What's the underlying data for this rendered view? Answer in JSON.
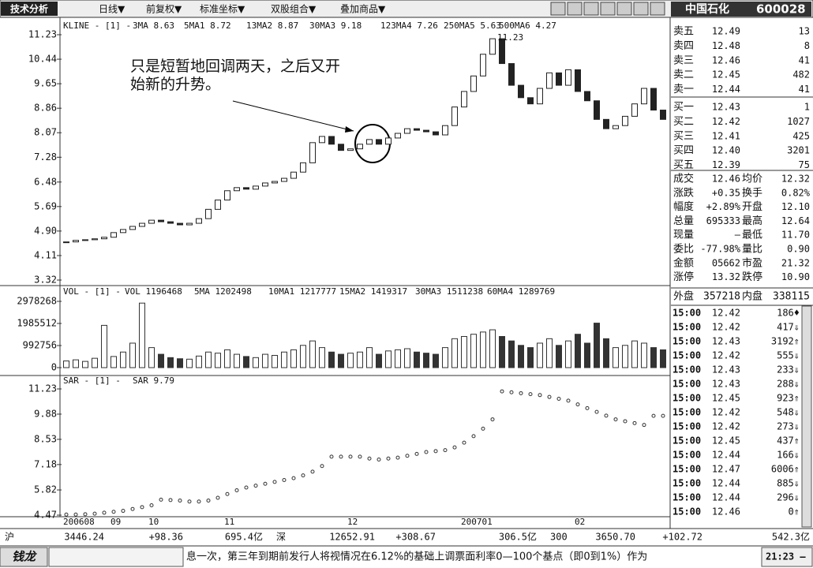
{
  "toolbar": {
    "title": "技术分析",
    "menus": [
      "日线▼",
      "前复权▼",
      "标准坐标▼",
      "双股组合▼",
      "叠加商品▼"
    ],
    "stock_name": "中国石化",
    "stock_code": "600028"
  },
  "kline": {
    "legend": [
      "KLINE - [1] -",
      "3MA 8.63",
      "5MA1 8.72",
      "13MA2 8.87",
      "30MA3 9.18",
      "123MA4 7.26",
      "250MA5 5.63",
      "500MA6 4.27"
    ],
    "peak_label": "11.23",
    "annotation": [
      "只是短暂地回调两天，之后又开",
      "始新的升势。"
    ],
    "ylim": [
      3.32,
      11.23
    ],
    "yticks": [
      11.23,
      10.44,
      9.65,
      8.86,
      8.07,
      7.28,
      6.48,
      5.69,
      {
        "value": 4.9,
        "label": "4.90"
      },
      4.11,
      3.32
    ],
    "close": [
      4.55,
      4.6,
      4.62,
      4.65,
      4.7,
      4.85,
      4.95,
      5.05,
      5.15,
      5.25,
      5.2,
      5.15,
      5.1,
      5.15,
      5.3,
      5.6,
      5.9,
      6.2,
      6.3,
      6.25,
      6.35,
      6.45,
      6.5,
      6.6,
      6.8,
      7.1,
      7.75,
      7.95,
      7.7,
      7.5,
      7.55,
      7.7,
      7.85,
      7.7,
      7.9,
      8.05,
      8.2,
      8.15,
      8.1,
      8.0,
      8.3,
      8.9,
      9.4,
      9.9,
      10.6,
      11.1,
      10.3,
      9.6,
      9.2,
      9.0,
      9.5,
      10.0,
      9.6,
      10.1,
      9.4,
      9.1,
      8.5,
      8.2,
      8.3,
      8.6,
      9.0,
      9.5,
      8.8,
      8.5
    ]
  },
  "volume": {
    "legend": [
      "VOL - [1] -",
      "VOL 1196468",
      "5MA 1202498",
      "10MA1 1217777",
      "15MA2 1419317",
      "30MA3 1511238",
      "60MA4 1289769"
    ],
    "ylim": [
      0,
      2978268
    ],
    "yticks": [
      2978268,
      1985512,
      992756,
      0
    ],
    "values": [
      300000,
      350000,
      280000,
      420000,
      1900000,
      500000,
      700000,
      1100000,
      2900000,
      900000,
      600000,
      450000,
      400000,
      380000,
      520000,
      700000,
      650000,
      800000,
      600000,
      500000,
      450000,
      600000,
      550000,
      700000,
      800000,
      1000000,
      1200000,
      900000,
      700000,
      600000,
      650000,
      700000,
      900000,
      600000,
      750000,
      800000,
      850000,
      700000,
      650000,
      600000,
      900000,
      1300000,
      1400000,
      1500000,
      1600000,
      1700000,
      1400000,
      1200000,
      1000000,
      900000,
      1100000,
      1300000,
      1000000,
      1200000,
      1500000,
      1100000,
      2000000,
      1300000,
      900000,
      1000000,
      1200000,
      1100000,
      900000,
      800000
    ]
  },
  "sar": {
    "legend": [
      "SAR - [1] -",
      "SAR 9.79"
    ],
    "ylim": [
      4.47,
      11.23
    ],
    "yticks": [
      11.23,
      9.88,
      8.53,
      7.18,
      5.82,
      4.47
    ],
    "values": [
      4.5,
      4.5,
      4.52,
      4.55,
      4.6,
      4.65,
      4.7,
      4.8,
      4.9,
      5.0,
      5.3,
      5.28,
      5.25,
      5.2,
      5.2,
      5.25,
      5.4,
      5.6,
      5.8,
      5.95,
      6.05,
      6.15,
      6.25,
      6.35,
      6.45,
      6.6,
      6.8,
      7.1,
      7.6,
      7.6,
      7.6,
      7.6,
      7.5,
      7.45,
      7.5,
      7.55,
      7.65,
      7.75,
      7.85,
      7.9,
      7.95,
      8.1,
      8.35,
      8.7,
      9.1,
      9.6,
      11.1,
      11.05,
      11.0,
      10.95,
      10.9,
      10.8,
      10.7,
      10.6,
      10.4,
      10.2,
      10.0,
      9.8,
      9.6,
      9.5,
      9.4,
      9.3,
      9.79,
      9.79
    ]
  },
  "xaxis": {
    "labels": [
      "200608",
      "09",
      "10",
      "11",
      "12",
      "200701",
      "02"
    ],
    "index": [
      0,
      5,
      9,
      17,
      30,
      42,
      54
    ]
  },
  "quote": {
    "book": [
      [
        "卖五",
        "12.49",
        "13"
      ],
      [
        "卖四",
        "12.48",
        "8"
      ],
      [
        "卖三",
        "12.46",
        "41"
      ],
      [
        "卖二",
        "12.45",
        "482"
      ],
      [
        "卖一",
        "12.44",
        "41"
      ],
      [
        "买一",
        "12.43",
        "1"
      ],
      [
        "买二",
        "12.42",
        "1027"
      ],
      [
        "买三",
        "12.41",
        "425"
      ],
      [
        "买四",
        "12.40",
        "3201"
      ],
      [
        "买五",
        "12.39",
        "75"
      ]
    ],
    "stats": [
      [
        "成交",
        "12.46",
        "均价",
        "12.32"
      ],
      [
        "涨跌",
        "+0.35",
        "换手",
        "0.82%"
      ],
      [
        "幅度",
        "+2.89%",
        "开盘",
        "12.10"
      ],
      [
        "总量",
        "695333",
        "最高",
        "12.64"
      ],
      [
        "现量",
        "—",
        "最低",
        "11.70"
      ],
      [
        "委比",
        "-77.98%",
        "量比",
        "0.90"
      ],
      [
        "金额",
        "05662",
        "市盈",
        "21.32"
      ],
      [
        "涨停",
        "13.32",
        "跌停",
        "10.90"
      ]
    ],
    "outer": [
      "外盘",
      "357218",
      "内盘",
      "338115"
    ],
    "ticks": [
      [
        "15:00",
        "12.42",
        "186♦"
      ],
      [
        "15:00",
        "12.42",
        "417⇓"
      ],
      [
        "15:00",
        "12.43",
        "3192⇑"
      ],
      [
        "15:00",
        "12.42",
        "555⇓"
      ],
      [
        "15:00",
        "12.43",
        "233⇓"
      ],
      [
        "15:00",
        "12.43",
        "288⇓"
      ],
      [
        "15:00",
        "12.45",
        "923⇑"
      ],
      [
        "15:00",
        "12.42",
        "548⇓"
      ],
      [
        "15:00",
        "12.42",
        "273⇓"
      ],
      [
        "15:00",
        "12.45",
        "437⇑"
      ],
      [
        "15:00",
        "12.44",
        "166⇓"
      ],
      [
        "15:00",
        "12.47",
        "6006⇑"
      ],
      [
        "15:00",
        "12.44",
        "885⇓"
      ],
      [
        "15:00",
        "12.44",
        "296⇓"
      ],
      [
        "15:00",
        "12.46",
        "0⇑"
      ]
    ]
  },
  "status": {
    "items": [
      "沪",
      "3446.24",
      "+98.36",
      "695.4亿",
      "深",
      "12652.91",
      "+308.67",
      "306.5亿",
      "300",
      "3650.70",
      "+102.72",
      "542.3亿"
    ],
    "logo": "钱龙",
    "ticker": "息一次，第三年到期前发行人将视情况在6.12%的基础上调票面利率0—100个基点（即0到1%）作为",
    "time": "21:23 —"
  }
}
